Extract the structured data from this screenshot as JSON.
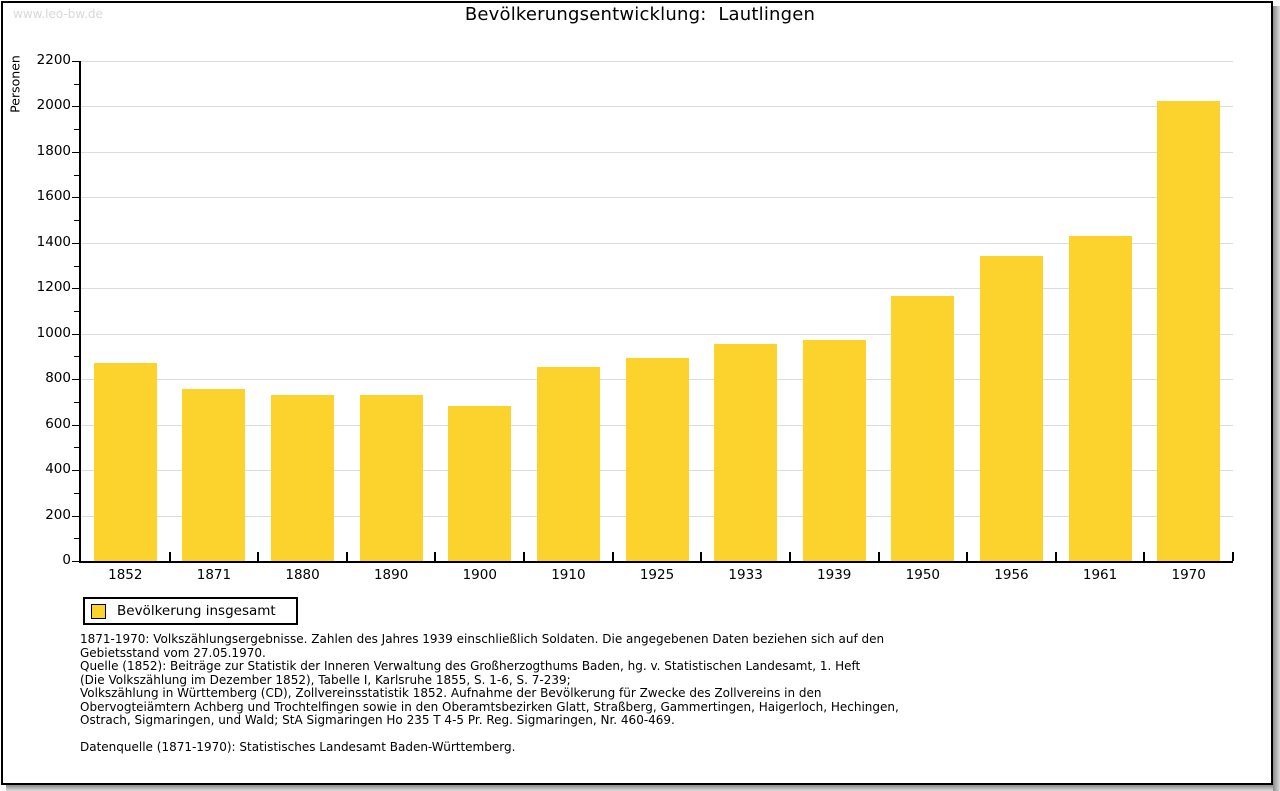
{
  "watermark": "www.leo-bw.de",
  "title": "Bevölkerungsentwicklung:  Lautlingen",
  "chart_data": {
    "type": "bar",
    "title": "Bevölkerungsentwicklung: Lautlingen",
    "categories": [
      "1852",
      "1871",
      "1880",
      "1890",
      "1900",
      "1910",
      "1925",
      "1933",
      "1939",
      "1950",
      "1956",
      "1961",
      "1970"
    ],
    "values": [
      870,
      757,
      730,
      730,
      683,
      855,
      893,
      955,
      971,
      1165,
      1341,
      1431,
      2024
    ],
    "series_name": "Bevölkerung insgesamt",
    "xlabel": "",
    "ylabel": "Personen",
    "ylim": [
      0,
      2200
    ],
    "ytick_step": 200,
    "ytick_minor_step": 100,
    "grid": true,
    "legend_position": "bottom-left",
    "bar_color": "#FCD32D"
  },
  "legend": {
    "label": "Bevölkerung insgesamt"
  },
  "footnotes": [
    "1871-1970: Volkszählungsergebnisse. Zahlen des Jahres 1939 einschließlich Soldaten. Die angegebenen Daten beziehen sich auf den",
    "Gebietsstand vom 27.05.1970.",
    "Quelle (1852): Beiträge zur Statistik der Inneren Verwaltung des Großherzogthums Baden, hg. v. Statistischen Landesamt, 1. Heft",
    "(Die Volkszählung im Dezember 1852), Tabelle I, Karlsruhe 1855, S. 1-6, S. 7-239;",
    "Volkszählung in Württemberg (CD), Zollvereinsstatistik 1852. Aufnahme der Bevölkerung für Zwecke des Zollvereins in den",
    "Obervogteiämtern Achberg und Trochtelfingen sowie in den Oberamtsbezirken Glatt, Straßberg, Gammertingen, Haigerloch, Hechingen,",
    "Ostrach, Sigmaringen, und Wald; StA Sigmaringen Ho 235 T 4-5 Pr. Reg. Sigmaringen, Nr. 460-469."
  ],
  "datasource_note": "Datenquelle (1871-1970): Statistisches Landesamt Baden-Württemberg.",
  "colors": {
    "bar": "#FCD32D",
    "grid": "#DCDCDC",
    "axis": "#000000",
    "watermark": "#D8D8D8",
    "background": "#FFFFFF"
  }
}
